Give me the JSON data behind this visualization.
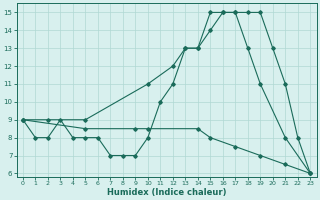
{
  "line1_x": [
    0,
    1,
    2,
    3,
    4,
    5,
    6,
    7,
    8,
    9,
    10,
    11,
    12,
    13,
    14,
    15,
    16,
    17,
    18,
    19,
    20,
    21,
    22,
    23
  ],
  "line1_y": [
    9,
    8,
    8,
    9,
    8,
    8,
    8,
    7,
    7,
    7,
    8,
    10,
    11,
    13,
    13,
    14,
    15,
    15,
    15,
    15,
    13,
    11,
    8,
    6
  ],
  "line2_x": [
    0,
    2,
    5,
    10,
    12,
    13,
    14,
    15,
    16,
    17,
    18,
    19,
    21,
    23
  ],
  "line2_y": [
    9,
    9,
    9,
    11,
    12,
    13,
    13,
    15,
    15,
    15,
    13,
    11,
    8,
    6
  ],
  "line3_x": [
    0,
    5,
    9,
    10,
    14,
    15,
    17,
    19,
    21,
    23
  ],
  "line3_y": [
    9,
    8.5,
    8.5,
    8.5,
    8.5,
    8,
    7.5,
    7,
    6.5,
    6
  ],
  "color": "#1a6b5a",
  "bg_color": "#d8f0ee",
  "grid_color": "#b0d8d4",
  "xlabel": "Humidex (Indice chaleur)",
  "xlim": [
    -0.5,
    23.5
  ],
  "ylim": [
    5.8,
    15.5
  ],
  "yticks": [
    6,
    7,
    8,
    9,
    10,
    11,
    12,
    13,
    14,
    15
  ],
  "xticks": [
    0,
    1,
    2,
    3,
    4,
    5,
    6,
    7,
    8,
    9,
    10,
    11,
    12,
    13,
    14,
    15,
    16,
    17,
    18,
    19,
    20,
    21,
    22,
    23
  ]
}
